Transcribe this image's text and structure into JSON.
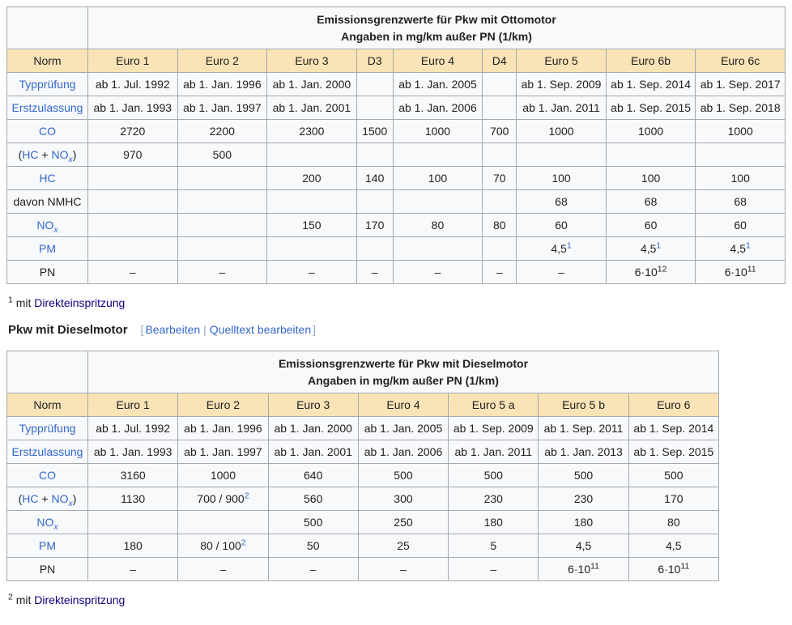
{
  "colors": {
    "header_bg": "#fae3b6",
    "cell_bg": "#f8f9fa",
    "border": "#a2a9b1",
    "link": "#3366cc",
    "visited_link": "#0b0080",
    "text": "#202122"
  },
  "heading": {
    "title": "Pkw mit Dieselmotor",
    "bracket_open": "[",
    "edit_label": "Bearbeiten",
    "separator": "|",
    "edit_source_label": "Quelltext bearbeiten",
    "bracket_close": "]"
  },
  "footnotes": [
    {
      "marker": "1",
      "mid": " mit ",
      "link": "Direkteinspritzung"
    },
    {
      "marker": "2",
      "mid": " mit ",
      "link": "Direkteinspritzung"
    }
  ],
  "tables": [
    {
      "key": "ottomotor",
      "title_line1": "Emissionsgrenzwerte für Pkw mit Ottomotor",
      "title_line2": "Angaben in mg/km außer PN (1/km)",
      "norm_label": "Norm",
      "columns": [
        "Euro 1",
        "Euro 2",
        "Euro 3",
        "D3",
        "Euro 4",
        "D4",
        "Euro 5",
        "Euro 6b",
        "Euro 6c"
      ],
      "rows": [
        {
          "key": "typpruefung",
          "label": [
            {
              "t": "Typprüfung",
              "link": true,
              "name": "typpruefung-link"
            }
          ],
          "cells": [
            "ab 1. Jul. 1992",
            "ab 1. Jan. 1996",
            "ab 1. Jan. 2000",
            "",
            "ab 1. Jan. 2005",
            "",
            "ab 1. Sep. 2009",
            "ab 1. Sep. 2014",
            "ab 1. Sep. 2017"
          ]
        },
        {
          "key": "erstzulassung",
          "label": [
            {
              "t": "Erstzulassung",
              "link": true,
              "name": "erstzulassung-link"
            }
          ],
          "cells": [
            "ab 1. Jan. 1993",
            "ab 1. Jan. 1997",
            "ab 1. Jan. 2001",
            "",
            "ab 1. Jan. 2006",
            "",
            "ab 1. Jan. 2011",
            "ab 1. Sep. 2015",
            "ab 1. Sep. 2018"
          ]
        },
        {
          "key": "co",
          "label": [
            {
              "t": "CO",
              "link": true,
              "name": "co-link"
            }
          ],
          "cells": [
            "2720",
            "2200",
            "2300",
            "1500",
            "1000",
            "700",
            "1000",
            "1000",
            "1000"
          ]
        },
        {
          "key": "hc-plus-nox",
          "label": [
            {
              "t": "("
            },
            {
              "t": "HC",
              "link": true,
              "name": "hc-link"
            },
            {
              "t": " + "
            },
            {
              "t": "NO",
              "link": true,
              "name": "nox-link"
            },
            {
              "t": "x",
              "link": true,
              "sub": true,
              "name": "nox-link"
            },
            {
              "t": ")"
            }
          ],
          "cells": [
            "970",
            "500",
            "",
            "",
            "",
            "",
            "",
            "",
            ""
          ]
        },
        {
          "key": "hc",
          "label": [
            {
              "t": "HC",
              "link": true,
              "name": "hc-link"
            }
          ],
          "cells": [
            "",
            "",
            "200",
            "140",
            "100",
            "70",
            "100",
            "100",
            "100"
          ]
        },
        {
          "key": "davon-nmhc",
          "label": [
            {
              "t": "davon NMHC"
            }
          ],
          "cells": [
            "",
            "",
            "",
            "",
            "",
            "",
            "68",
            "68",
            "68"
          ]
        },
        {
          "key": "nox",
          "label": [
            {
              "t": "NO",
              "link": true,
              "name": "nox-link"
            },
            {
              "t": "x",
              "link": true,
              "sub": true,
              "name": "nox-link"
            }
          ],
          "cells": [
            "",
            "",
            "150",
            "170",
            "80",
            "80",
            "60",
            "60",
            "60"
          ]
        },
        {
          "key": "pm",
          "label": [
            {
              "t": "PM",
              "link": true,
              "name": "pm-link"
            }
          ],
          "cells": [
            "",
            "",
            "",
            "",
            "",
            "",
            [
              {
                "t": "4,5"
              },
              {
                "t": "1",
                "sup": true,
                "link": true,
                "name": "footnote-ref-1"
              }
            ],
            [
              {
                "t": "4,5"
              },
              {
                "t": "1",
                "sup": true,
                "link": true,
                "name": "footnote-ref-1"
              }
            ],
            [
              {
                "t": "4,5"
              },
              {
                "t": "1",
                "sup": true,
                "link": true,
                "name": "footnote-ref-1"
              }
            ]
          ]
        },
        {
          "key": "pn",
          "label": [
            {
              "t": "PN"
            }
          ],
          "cells": [
            "–",
            "–",
            "–",
            "–",
            "–",
            "–",
            "–",
            [
              {
                "t": "6·10"
              },
              {
                "t": "12",
                "sup": true
              }
            ],
            [
              {
                "t": "6·10"
              },
              {
                "t": "11",
                "sup": true
              }
            ]
          ]
        }
      ]
    },
    {
      "key": "dieselmotor",
      "title_line1": "Emissionsgrenzwerte für Pkw mit Dieselmotor",
      "title_line2": "Angaben in mg/km außer PN (1/km)",
      "norm_label": "Norm",
      "columns": [
        "Euro 1",
        "Euro 2",
        "Euro 3",
        "Euro 4",
        "Euro 5 a",
        "Euro 5 b",
        "Euro 6"
      ],
      "rows": [
        {
          "key": "typpruefung",
          "label": [
            {
              "t": "Typprüfung",
              "link": true,
              "name": "typpruefung-link"
            }
          ],
          "cells": [
            "ab 1. Jul. 1992",
            "ab 1. Jan. 1996",
            "ab 1. Jan. 2000",
            "ab 1. Jan. 2005",
            "ab 1. Sep. 2009",
            "ab 1. Sep. 2011",
            "ab 1. Sep. 2014"
          ]
        },
        {
          "key": "erstzulassung",
          "label": [
            {
              "t": "Erstzulassung",
              "link": true,
              "name": "erstzulassung-link"
            }
          ],
          "cells": [
            "ab 1. Jan. 1993",
            "ab 1. Jan. 1997",
            "ab 1. Jan. 2001",
            "ab 1. Jan. 2006",
            "ab 1. Jan. 2011",
            "ab 1. Jan. 2013",
            "ab 1. Sep. 2015"
          ]
        },
        {
          "key": "co",
          "label": [
            {
              "t": "CO",
              "link": true,
              "name": "co-link"
            }
          ],
          "cells": [
            "3160",
            "1000",
            "640",
            "500",
            "500",
            "500",
            "500"
          ]
        },
        {
          "key": "hc-plus-nox",
          "label": [
            {
              "t": "("
            },
            {
              "t": "HC",
              "link": true,
              "name": "hc-link"
            },
            {
              "t": " + "
            },
            {
              "t": "NO",
              "link": true,
              "name": "nox-link"
            },
            {
              "t": "x",
              "link": true,
              "sub": true,
              "name": "nox-link"
            },
            {
              "t": ")"
            }
          ],
          "cells": [
            "1130",
            [
              {
                "t": "700 / 900"
              },
              {
                "t": "2",
                "sup": true,
                "link": true,
                "name": "footnote-ref-2"
              }
            ],
            "560",
            "300",
            "230",
            "230",
            "170"
          ]
        },
        {
          "key": "nox",
          "label": [
            {
              "t": "NO",
              "link": true,
              "name": "nox-link"
            },
            {
              "t": "x",
              "link": true,
              "sub": true,
              "name": "nox-link"
            }
          ],
          "cells": [
            "",
            "",
            "500",
            "250",
            "180",
            "180",
            "80"
          ]
        },
        {
          "key": "pm",
          "label": [
            {
              "t": "PM",
              "link": true,
              "name": "pm-link"
            }
          ],
          "cells": [
            "180",
            [
              {
                "t": "80 / 100"
              },
              {
                "t": "2",
                "sup": true,
                "link": true,
                "name": "footnote-ref-2"
              }
            ],
            "50",
            "25",
            "5",
            "4,5",
            "4,5"
          ]
        },
        {
          "key": "pn",
          "label": [
            {
              "t": "PN"
            }
          ],
          "cells": [
            "–",
            "–",
            "–",
            "–",
            "–",
            [
              {
                "t": "6·10"
              },
              {
                "t": "11",
                "sup": true
              }
            ],
            [
              {
                "t": "6·10"
              },
              {
                "t": "11",
                "sup": true
              }
            ]
          ]
        }
      ]
    }
  ]
}
